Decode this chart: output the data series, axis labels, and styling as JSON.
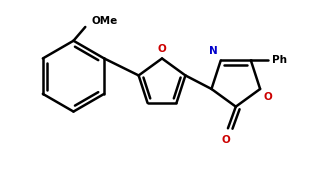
{
  "bg_color": "#ffffff",
  "line_color": "#000000",
  "N_color": "#0000cc",
  "O_color": "#cc0000",
  "text_color": "#000000",
  "linewidth": 1.8,
  "figsize": [
    3.27,
    1.71
  ],
  "dpi": 100,
  "OMe_label": "OMe",
  "N_label": "N",
  "O_label": "O",
  "Ph_label": "Ph",
  "carbonyl_O_label": "O"
}
